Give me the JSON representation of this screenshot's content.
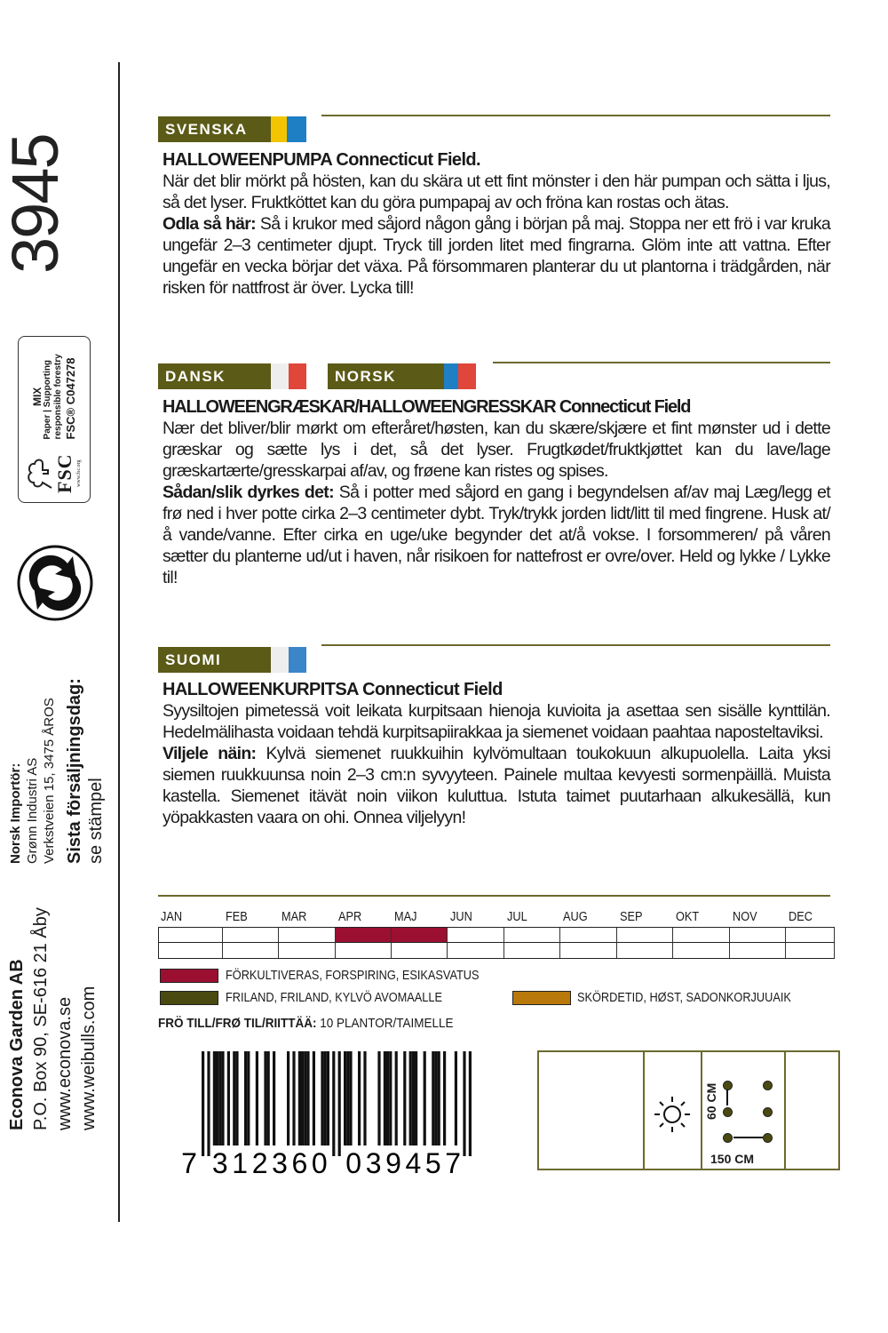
{
  "side": {
    "article_number": "3945",
    "fsc": {
      "logo": "FSC",
      "site": "www.fsc.org",
      "mix": "MIX",
      "line1": "Paper | Supporting",
      "line2": "responsible forestry",
      "license": "FSC® C047278"
    },
    "recycle_icon": "recycle-arrows-icon",
    "company": [
      "Econova Garden AB",
      "P.O. Box 90, SE-616 21 Åby",
      "www.econova.se",
      "www.weibulls.com"
    ],
    "importer_title": "Norsk Importör:",
    "importer": [
      "Grønn Industri AS",
      "Verkstveien 15, 3475 ÅROS"
    ],
    "last_sale_title": "Sista försäljningsdag:",
    "last_sale": "se stämpel"
  },
  "sections": {
    "svenska": {
      "label": "SVENSKA",
      "flag": [
        "#f2c500",
        "#1f7fc4"
      ],
      "title": "HALLOWEENPUMPA Connecticut Field.",
      "intro": "När det blir mörkt på hösten, kan du skära ut ett fint mönster i den här pumpan och sätta i ljus, så det lyser. Fruktköttet kan du göra pumpapaj av och fröna kan rostas och ätas.",
      "howto_label": "Odla så här:",
      "howto": " Så i krukor med såjord någon gång i början på maj. Stoppa ner ett frö i var kruka ungefär 2–3 centimeter djupt. Tryck till jorden litet med fingrarna. Glöm inte att vattna. Efter ungefär en vecka börjar det växa. På försommaren planterar du ut plantorna i trädgården, när risken för nattfrost är över. Lycka till!"
    },
    "dansk": {
      "label": "DANSK",
      "flag": [
        "#eeeeee",
        "#e0463a"
      ]
    },
    "norsk": {
      "label": "NORSK",
      "flag": [
        "#1f7fc4",
        "#e0463a"
      ]
    },
    "dansk_norsk": {
      "title": "HALLOWEENGRÆSKAR/HALLOWEENGRESSKAR Connecticut Field",
      "intro": "Nær det bliver/blir mørkt om efteråret/høsten, kan du skære/skjære et fint mønster ud i dette græskar og sætte lys i det, så det lyser. Frugtkødet/fruktkjøttet kan du lave/lage græskartærte/gresskarpai af/av, og frøene kan ristes og spises.",
      "howto_label": "Sådan/slik dyrkes det:",
      "howto": " Så i potter med såjord en gang i begyndelsen af/av maj Læg/legg et frø ned i hver potte cirka 2–3 centimeter dybt. Tryk/trykk jorden lidt/litt til med fingrene. Husk at/å vande/vanne. Efter cirka en uge/uke begynder det at/å vokse. I forsommeren/ på våren sætter du planterne ud/ut i haven, når risikoen for nattefrost er ovre/over. Held og lykke / Lykke til!"
    },
    "suomi": {
      "label": "SUOMI",
      "flag": [
        "#eeeeee",
        "#3a86c8"
      ],
      "title": "HALLOWEENKURPITSA Connecticut Field",
      "intro": "Syysiltojen pimetessä voit leikata kurpitsaan hienoja kuvioita ja asettaa sen sisälle kynttilän. Hedelmälihasta voidaan tehdä kurpitsapiirakkaa ja siemenet voidaan paahtaa naposteltaviksi.",
      "howto_label": "Viljele näin:",
      "howto": " Kylvä siemenet ruukkuihin kylvömultaan toukokuun alkupuolella. Laita yksi siemen ruukkuunsa noin 2–3 cm:n syvyyteen. Painele multaa kevyesti sormenpäillä. Muista kastella. Siemenet itävät noin viikon kuluttua. Istuta taimet puutarhaan alkukesällä, kun yöpakkasten vaara on ohi. Onnea viljelyyn!"
    }
  },
  "calendar": {
    "months": [
      "JAN",
      "FEB",
      "MAR",
      "APR",
      "MAJ",
      "JUN",
      "JUL",
      "AUG",
      "SEP",
      "OKT",
      "NOV",
      "DEC"
    ],
    "rows": [
      {
        "type": "precultivate",
        "months": [
          "APR",
          "MAJ"
        ]
      },
      {
        "type": "outdoor",
        "months": []
      }
    ],
    "legend": {
      "precultivate": {
        "label": "FÖRKULTIVERAS, FORSPIRING, ESIKASVATUS",
        "color": "#9b1030"
      },
      "outdoor": {
        "label": "FRILAND, FRILAND, KYLVÖ AVOMAALLE",
        "color": "#4a4a10"
      },
      "harvest": {
        "label": "SKÖRDETID, HØST, SADONKORJUUAIK",
        "color": "#b8780a"
      }
    }
  },
  "seeds": {
    "label": "FRÖ TILL/FRØ TIL/RIITTÄÄ:",
    "value": " 10 PLANTOR/TAIMELLE"
  },
  "barcode": {
    "digits": "7312360039457"
  },
  "growing_info": {
    "sun_icon": "full-sun-icon",
    "row_spacing": "60 CM",
    "plant_spacing": "150 CM"
  }
}
